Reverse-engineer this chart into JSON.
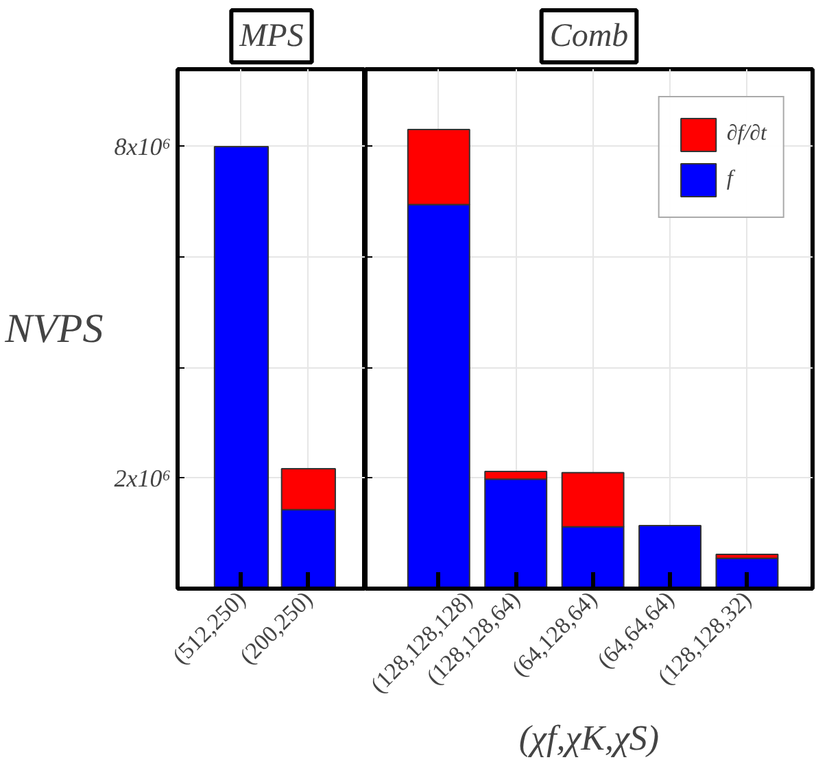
{
  "chart_data": [
    {
      "type": "bar",
      "title": "MPS",
      "ylabel": "NVPS",
      "categories": [
        "(512,250)",
        "(200,250)"
      ],
      "stacked": true,
      "series": [
        {
          "color": "#0000ff",
          "values": [
            8000000,
            1430000
          ]
        },
        {
          "color": "#ff0000",
          "values": [
            0,
            740000
          ]
        }
      ],
      "ylim": [
        0,
        9400000
      ],
      "yticks": [
        {
          "value": 2000000,
          "label": "2x10⁶"
        },
        {
          "value": 4000000,
          "label": null
        },
        {
          "value": 6000000,
          "label": null
        },
        {
          "value": 8000000,
          "label": "8x10⁶"
        }
      ],
      "grid": true
    },
    {
      "type": "bar",
      "title": "Comb",
      "xlabel": "(χf,χK,χS)",
      "categories": [
        "(128,128,128)",
        "(128,128,64)",
        "(64,128,64)",
        "(64,64,64)",
        "(128,128,32)"
      ],
      "stacked": true,
      "series": [
        {
          "name": "f",
          "color": "#0000ff",
          "values": [
            6950000,
            1980000,
            1120000,
            1140000,
            550000
          ]
        },
        {
          "name": "∂f/∂t",
          "color": "#ff0000",
          "values": [
            1360000,
            140000,
            980000,
            0,
            70000
          ]
        }
      ],
      "ylim": [
        0,
        9400000
      ],
      "yticks": [
        {
          "value": 2000000,
          "label": null
        },
        {
          "value": 4000000,
          "label": null
        },
        {
          "value": 6000000,
          "label": null
        },
        {
          "value": 8000000,
          "label": null
        }
      ],
      "grid": true,
      "legend": "top right",
      "tick_labels": "x"
    }
  ]
}
